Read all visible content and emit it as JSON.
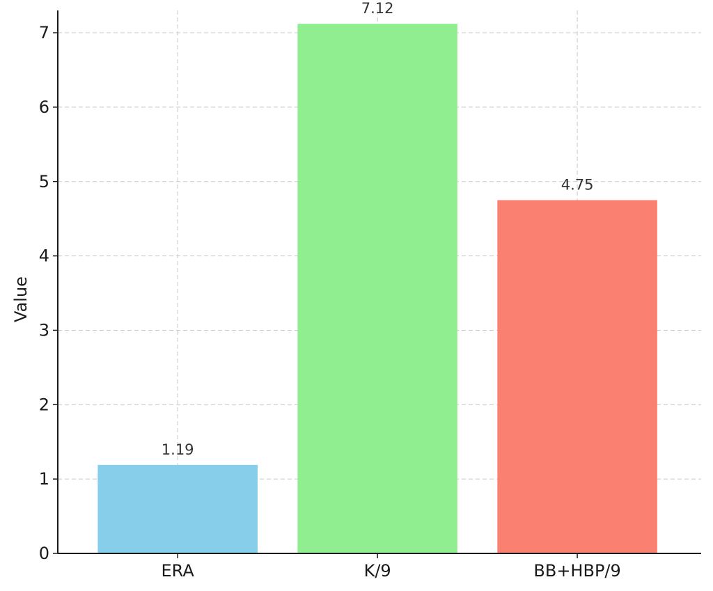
{
  "chart_data": {
    "type": "bar",
    "title": "",
    "xlabel": "",
    "ylabel": "Value",
    "categories": [
      "ERA",
      "K/9",
      "BB+HBP/9"
    ],
    "values": [
      1.19,
      7.12,
      4.75
    ],
    "value_labels": [
      "1.19",
      "7.12",
      "4.75"
    ],
    "colors": [
      "#87ceeb",
      "#90ee90",
      "#fa8072"
    ],
    "ylim": [
      0,
      7.3
    ],
    "yticks": [
      0,
      1,
      2,
      3,
      4,
      5,
      6,
      7
    ],
    "grid": true,
    "grid_style": "dashed",
    "legend": "none"
  }
}
